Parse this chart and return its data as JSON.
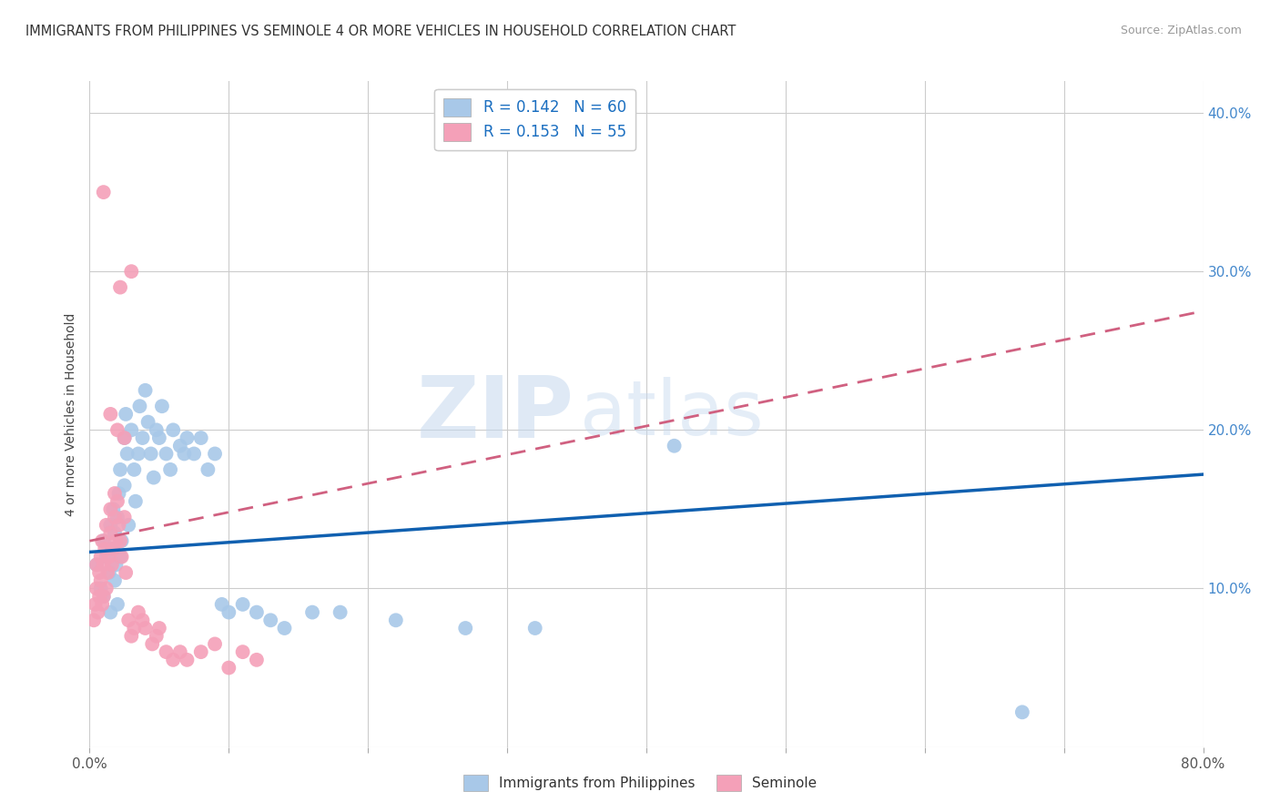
{
  "title": "IMMIGRANTS FROM PHILIPPINES VS SEMINOLE 4 OR MORE VEHICLES IN HOUSEHOLD CORRELATION CHART",
  "source": "Source: ZipAtlas.com",
  "ylabel": "4 or more Vehicles in Household",
  "legend_label_blue": "Immigrants from Philippines",
  "legend_label_pink": "Seminole",
  "r_blue": 0.142,
  "n_blue": 60,
  "r_pink": 0.153,
  "n_pink": 55,
  "xlim": [
    0.0,
    0.8
  ],
  "ylim": [
    0.0,
    0.42
  ],
  "watermark_zip": "ZIP",
  "watermark_atlas": "atlas",
  "color_blue": "#a8c8e8",
  "color_pink": "#f4a0b8",
  "line_color_blue": "#1060b0",
  "line_color_pink": "#d06080",
  "background_color": "#ffffff",
  "blue_x": [
    0.005,
    0.008,
    0.01,
    0.01,
    0.012,
    0.014,
    0.015,
    0.015,
    0.016,
    0.017,
    0.018,
    0.018,
    0.019,
    0.02,
    0.02,
    0.021,
    0.022,
    0.022,
    0.023,
    0.025,
    0.025,
    0.026,
    0.027,
    0.028,
    0.03,
    0.032,
    0.033,
    0.035,
    0.036,
    0.038,
    0.04,
    0.042,
    0.044,
    0.046,
    0.048,
    0.05,
    0.052,
    0.055,
    0.058,
    0.06,
    0.065,
    0.068,
    0.07,
    0.075,
    0.08,
    0.085,
    0.09,
    0.095,
    0.1,
    0.11,
    0.12,
    0.13,
    0.14,
    0.16,
    0.18,
    0.22,
    0.27,
    0.32,
    0.42,
    0.67
  ],
  "blue_y": [
    0.115,
    0.1,
    0.13,
    0.095,
    0.12,
    0.11,
    0.14,
    0.085,
    0.125,
    0.15,
    0.105,
    0.135,
    0.115,
    0.145,
    0.09,
    0.16,
    0.175,
    0.12,
    0.13,
    0.195,
    0.165,
    0.21,
    0.185,
    0.14,
    0.2,
    0.175,
    0.155,
    0.185,
    0.215,
    0.195,
    0.225,
    0.205,
    0.185,
    0.17,
    0.2,
    0.195,
    0.215,
    0.185,
    0.175,
    0.2,
    0.19,
    0.185,
    0.195,
    0.185,
    0.195,
    0.175,
    0.185,
    0.09,
    0.085,
    0.09,
    0.085,
    0.08,
    0.075,
    0.085,
    0.085,
    0.08,
    0.075,
    0.075,
    0.19,
    0.022
  ],
  "pink_x": [
    0.003,
    0.004,
    0.005,
    0.005,
    0.006,
    0.007,
    0.007,
    0.008,
    0.008,
    0.009,
    0.009,
    0.01,
    0.01,
    0.011,
    0.012,
    0.012,
    0.013,
    0.014,
    0.015,
    0.015,
    0.016,
    0.017,
    0.018,
    0.018,
    0.019,
    0.02,
    0.021,
    0.022,
    0.023,
    0.025,
    0.026,
    0.028,
    0.03,
    0.032,
    0.035,
    0.038,
    0.04,
    0.045,
    0.048,
    0.05,
    0.055,
    0.06,
    0.065,
    0.07,
    0.08,
    0.09,
    0.1,
    0.11,
    0.12,
    0.015,
    0.02,
    0.025,
    0.03,
    0.01,
    0.022
  ],
  "pink_y": [
    0.08,
    0.09,
    0.1,
    0.115,
    0.085,
    0.095,
    0.11,
    0.105,
    0.12,
    0.09,
    0.13,
    0.095,
    0.115,
    0.125,
    0.14,
    0.1,
    0.11,
    0.12,
    0.135,
    0.15,
    0.115,
    0.125,
    0.145,
    0.16,
    0.13,
    0.155,
    0.14,
    0.13,
    0.12,
    0.145,
    0.11,
    0.08,
    0.07,
    0.075,
    0.085,
    0.08,
    0.075,
    0.065,
    0.07,
    0.075,
    0.06,
    0.055,
    0.06,
    0.055,
    0.06,
    0.065,
    0.05,
    0.06,
    0.055,
    0.21,
    0.2,
    0.195,
    0.3,
    0.35,
    0.29
  ]
}
